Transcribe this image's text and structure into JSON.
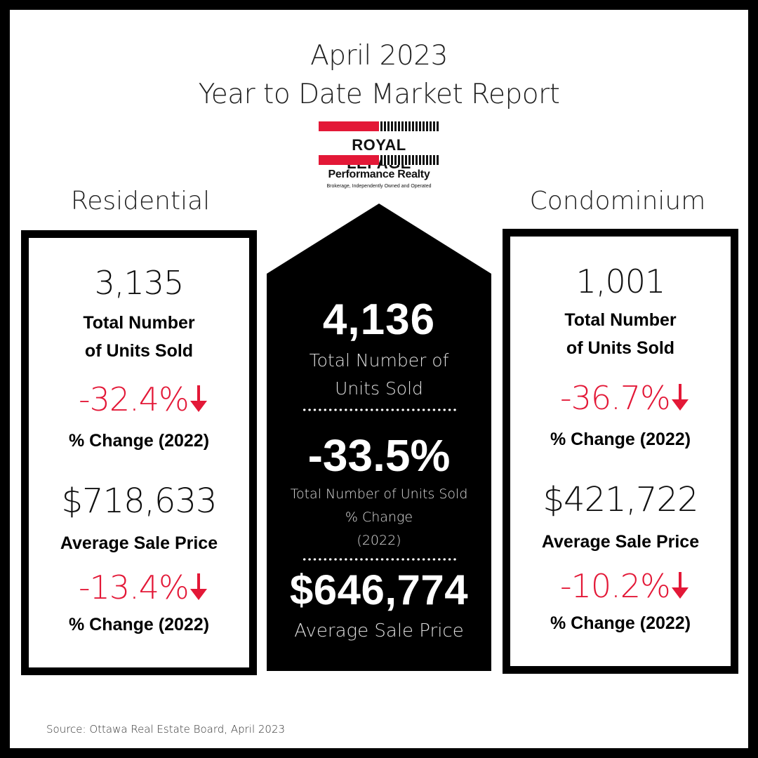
{
  "title_line1": "April 2023",
  "title_line2": "Year to Date Market Report",
  "logo": {
    "brand": "ROYAL LEPAGE",
    "office": "Performance Realty",
    "tagline": "Brokerage, Independently Owned and Operated"
  },
  "residential": {
    "label": "Residential",
    "units": "3,135",
    "units_label_1": "Total Number",
    "units_label_2": "of Units Sold",
    "units_change": "-32.4%",
    "change_label": "% Change (2022)",
    "avg_price": "$718,633",
    "avg_price_label": "Average Sale Price",
    "price_change": "-13.4%"
  },
  "condominium": {
    "label": "Condominium",
    "units": "1,001",
    "units_label_1": "Total Number",
    "units_label_2": "of Units Sold",
    "units_change": "-36.7%",
    "change_label": "% Change (2022)",
    "avg_price": "$421,722",
    "avg_price_label": "Average Sale Price",
    "price_change": "-10.2%"
  },
  "total": {
    "units": "4,136",
    "units_label_1": "Total Number of",
    "units_label_2": "Units Sold",
    "units_change": "-33.5%",
    "change_label_1": "Total Number of Units Sold",
    "change_label_2": "% Change",
    "change_label_3": "(2022)",
    "avg_price": "$646,774",
    "avg_price_label": "Average Sale Price"
  },
  "source": "Source: Ottawa Real Estate Board, April 2023",
  "colors": {
    "accent_red": "#e31837",
    "black": "#000000"
  },
  "icons": [
    "down-arrow-icon"
  ]
}
